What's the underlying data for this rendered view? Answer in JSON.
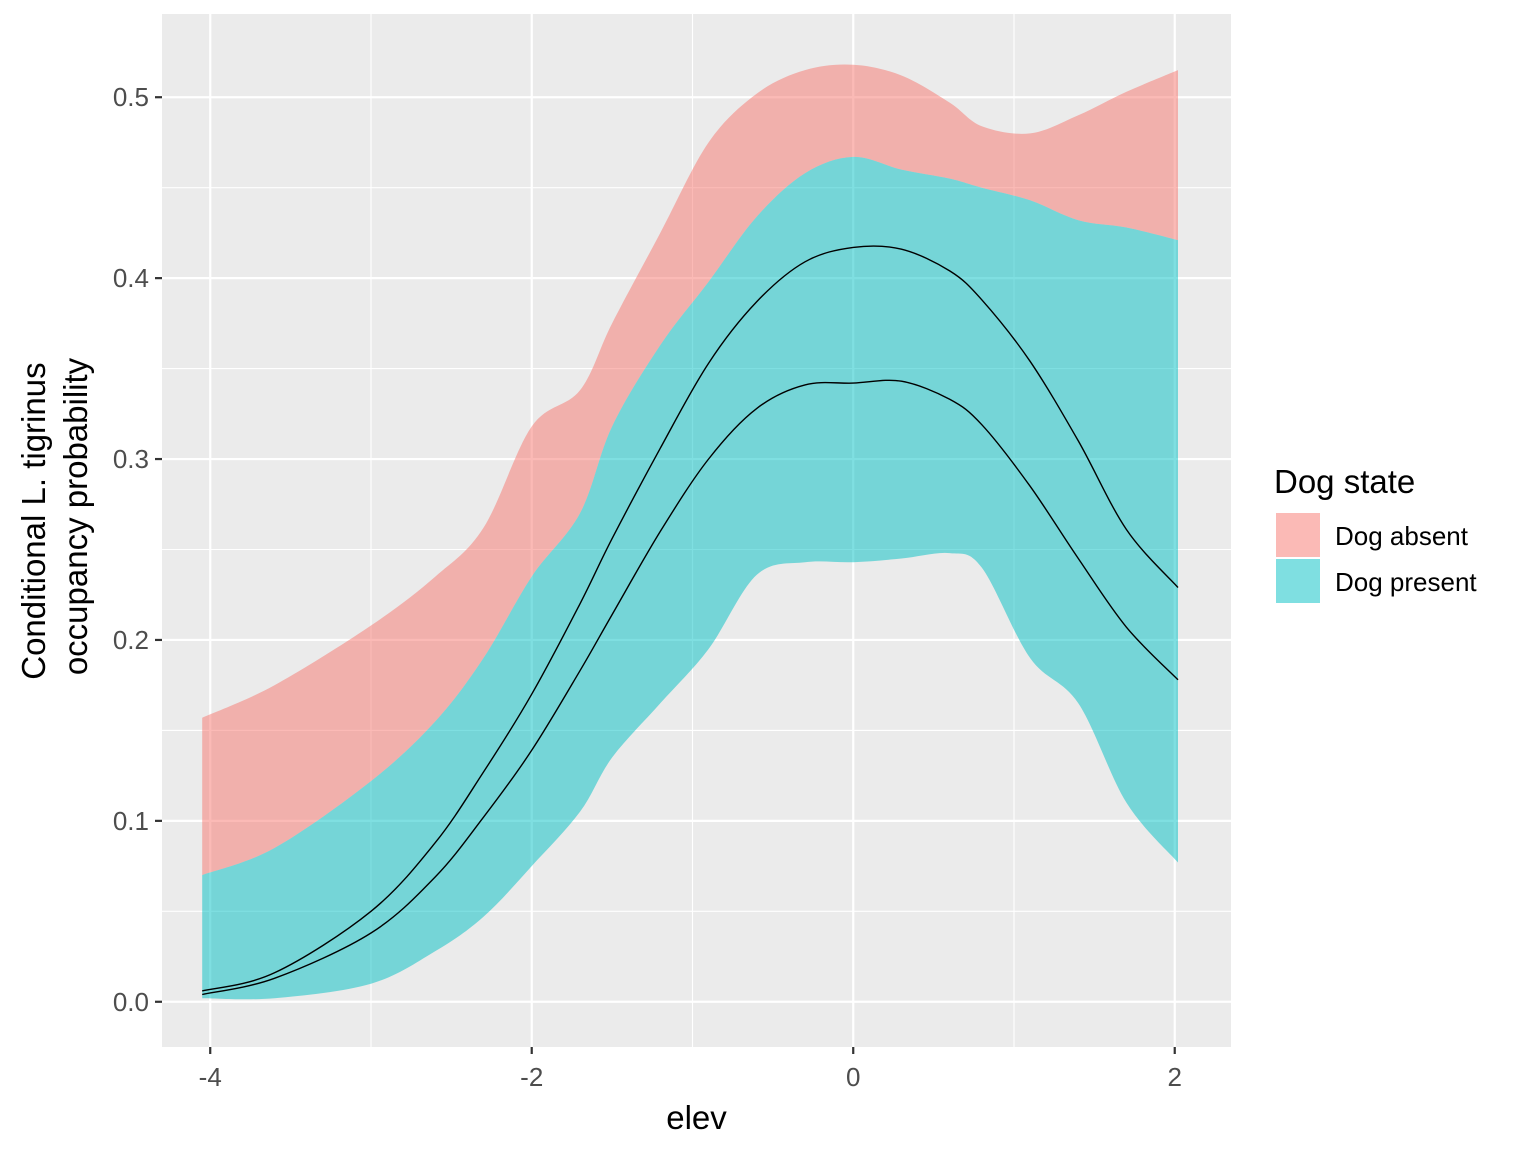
{
  "chart_data": {
    "type": "area",
    "title": "",
    "xlabel": "elev",
    "ylabel_lines": [
      "Conditional L. tigrinus",
      "occupancy probability"
    ],
    "xlim": [
      -4.3,
      2.35
    ],
    "ylim": [
      -0.025,
      0.546
    ],
    "xticks": [
      -4,
      -2,
      0,
      2
    ],
    "xtick_labels": [
      "-4",
      "-2",
      "0",
      "2"
    ],
    "yticks": [
      0.0,
      0.1,
      0.2,
      0.3,
      0.4,
      0.5
    ],
    "ytick_labels": [
      "0.0",
      "0.1",
      "0.2",
      "0.3",
      "0.4",
      "0.5"
    ],
    "grid": true,
    "legend": {
      "title": "Dog state",
      "placement": "right",
      "entries": [
        "Dog absent",
        "Dog present"
      ]
    },
    "colors": {
      "panel": "#EBEBEB",
      "grid": "#FFFFFF",
      "line": "#000000"
    },
    "series": [
      {
        "name": "Dog absent",
        "color": "#F8766D",
        "opacity": 0.5,
        "x": [
          -4.05,
          -3.6,
          -3.0,
          -2.6,
          -2.3,
          -2.0,
          -1.7,
          -1.5,
          -1.2,
          -0.9,
          -0.6,
          -0.3,
          0.0,
          0.3,
          0.6,
          0.8,
          1.1,
          1.4,
          1.7,
          2.02
        ],
        "upper": [
          0.157,
          0.175,
          0.208,
          0.235,
          0.262,
          0.318,
          0.338,
          0.375,
          0.425,
          0.475,
          0.502,
          0.515,
          0.518,
          0.512,
          0.497,
          0.484,
          0.48,
          0.49,
          0.503,
          0.515
        ],
        "mid": [
          0.006,
          0.016,
          0.05,
          0.088,
          0.127,
          0.17,
          0.22,
          0.256,
          0.306,
          0.353,
          0.387,
          0.409,
          0.417,
          0.416,
          0.404,
          0.388,
          0.354,
          0.31,
          0.261,
          0.229
        ],
        "lower": [
          0.07,
          0.085,
          0.122,
          0.155,
          0.19,
          0.235,
          0.27,
          0.318,
          0.363,
          0.398,
          0.434,
          0.458,
          0.467,
          0.46,
          0.455,
          0.45,
          0.443,
          0.432,
          0.428,
          0.421
        ]
      },
      {
        "name": "Dog present",
        "color": "#00BFC4",
        "opacity": 0.5,
        "x": [
          -4.05,
          -3.6,
          -3.0,
          -2.6,
          -2.3,
          -2.0,
          -1.7,
          -1.5,
          -1.2,
          -0.9,
          -0.6,
          -0.3,
          0.0,
          0.3,
          0.6,
          0.8,
          1.1,
          1.4,
          1.7,
          2.02
        ],
        "upper": [
          0.07,
          0.085,
          0.122,
          0.155,
          0.19,
          0.235,
          0.27,
          0.318,
          0.363,
          0.398,
          0.434,
          0.458,
          0.467,
          0.46,
          0.455,
          0.45,
          0.443,
          0.432,
          0.428,
          0.421
        ],
        "mid": [
          0.004,
          0.013,
          0.038,
          0.069,
          0.102,
          0.139,
          0.183,
          0.214,
          0.26,
          0.3,
          0.328,
          0.341,
          0.342,
          0.343,
          0.333,
          0.319,
          0.285,
          0.245,
          0.207,
          0.178
        ],
        "lower": [
          0.002,
          0.002,
          0.01,
          0.028,
          0.047,
          0.075,
          0.105,
          0.135,
          0.165,
          0.195,
          0.236,
          0.243,
          0.243,
          0.245,
          0.248,
          0.24,
          0.19,
          0.165,
          0.11,
          0.077
        ]
      }
    ]
  }
}
